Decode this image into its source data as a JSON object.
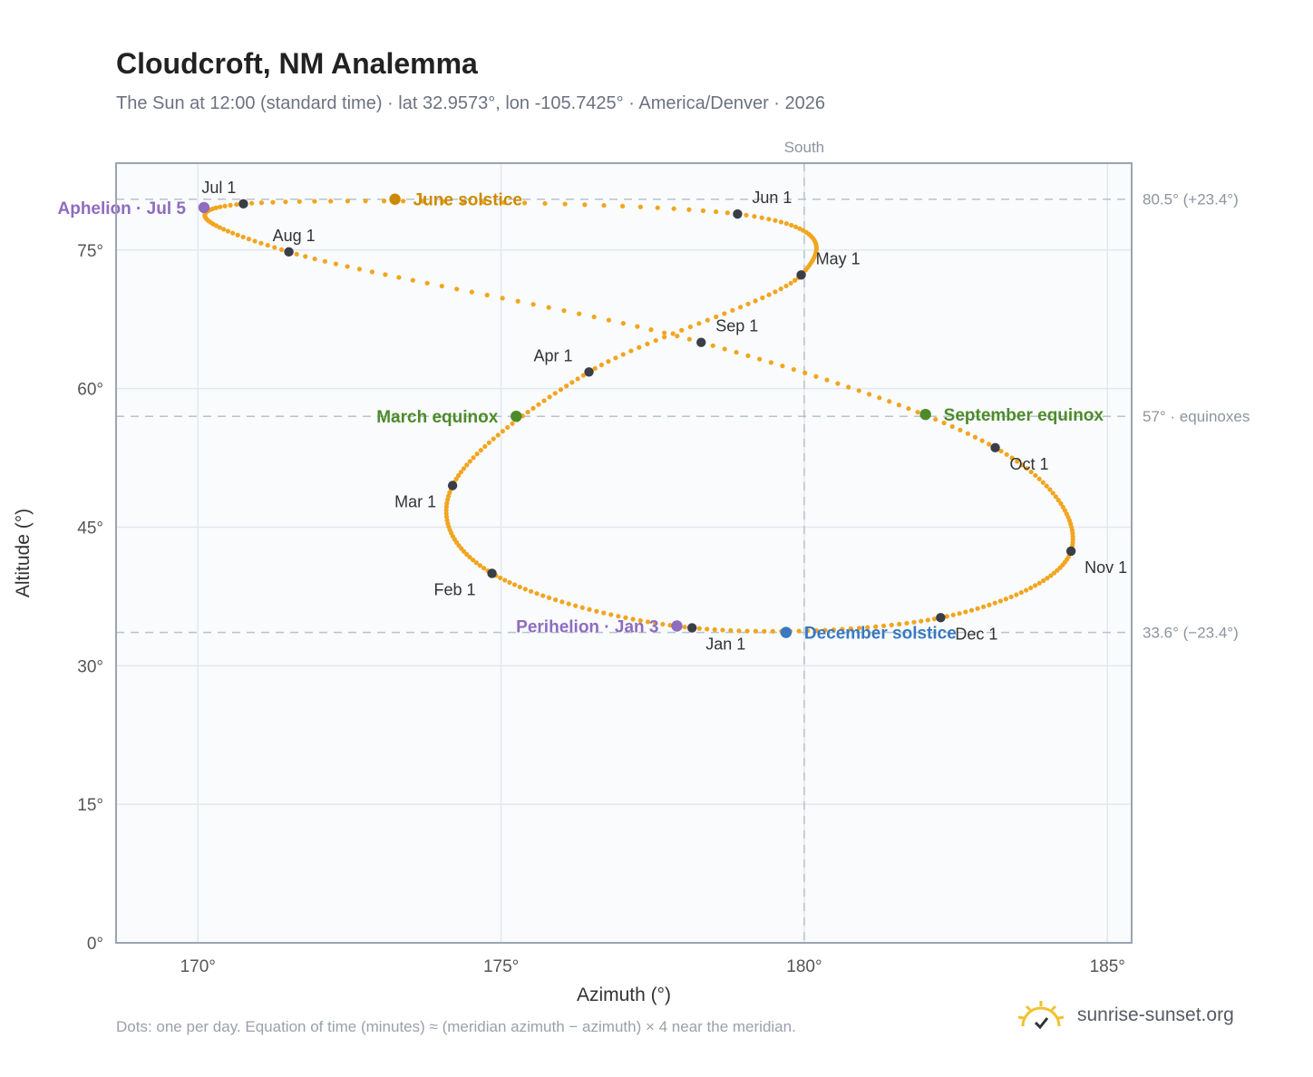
{
  "header": {
    "title": "Cloudcroft, NM Analemma",
    "subtitle": "The Sun at 12:00 (standard time) · lat 32.9573°, lon -105.7425° · America/Denver · 2026"
  },
  "footer": {
    "note": "Dots: one per day. Equation of time (minutes) ≈ (meridian azimuth − azimuth) × 4 near the meridian.",
    "brand": "sunrise-sunset.org"
  },
  "colors": {
    "curve": "#f2a51f",
    "month_marker": "#3a3f47",
    "june_solstice": "#cc8a00",
    "december_solstice": "#3a78c0",
    "equinox": "#4d8b2a",
    "apsis": "#8e6cbf",
    "plot_bg": "#f9fbfd",
    "grid": "#e3e8ee",
    "axis": "#9aa4b2",
    "reference_line": "#b8c3cd"
  },
  "chart_data": {
    "type": "scatter",
    "title": "Cloudcroft, NM Analemma",
    "xlabel": "Azimuth (°)",
    "ylabel": "Altitude (°)",
    "xlim": [
      168.65,
      185.4
    ],
    "ylim": [
      0,
      84.4
    ],
    "x_ticks": [
      170,
      175,
      180,
      185
    ],
    "x_tick_labels": [
      "170°",
      "175°",
      "180°",
      "185°"
    ],
    "y_ticks": [
      0,
      15,
      30,
      45,
      60,
      75
    ],
    "y_tick_labels": [
      "0°",
      "15°",
      "30°",
      "45°",
      "60°",
      "75°"
    ],
    "grid": true,
    "series": [
      {
        "points_per": "day",
        "month_markers": [
          {
            "label": "Jan 1",
            "azimuth": 178.15,
            "altitude": 34.1
          },
          {
            "label": "Feb 1",
            "azimuth": 174.85,
            "altitude": 40.0
          },
          {
            "label": "Mar 1",
            "azimuth": 174.2,
            "altitude": 49.5
          },
          {
            "label": "Apr 1",
            "azimuth": 176.45,
            "altitude": 61.8
          },
          {
            "label": "May 1",
            "azimuth": 179.95,
            "altitude": 72.3
          },
          {
            "label": "Jun 1",
            "azimuth": 178.9,
            "altitude": 78.9
          },
          {
            "label": "Jul 1",
            "azimuth": 170.75,
            "altitude": 80.0
          },
          {
            "label": "Aug 1",
            "azimuth": 171.5,
            "altitude": 74.8
          },
          {
            "label": "Sep 1",
            "azimuth": 178.3,
            "altitude": 65.0
          },
          {
            "label": "Oct 1",
            "azimuth": 183.15,
            "altitude": 53.6
          },
          {
            "label": "Nov 1",
            "azimuth": 184.4,
            "altitude": 42.4
          },
          {
            "label": "Dec 1",
            "azimuth": 182.25,
            "altitude": 35.2
          }
        ]
      }
    ],
    "events": [
      {
        "label": "June solstice",
        "azimuth": 173.25,
        "altitude": 80.5,
        "color_key": "june_solstice",
        "label_side": "right"
      },
      {
        "label": "December solstice",
        "azimuth": 179.7,
        "altitude": 33.6,
        "color_key": "december_solstice",
        "label_side": "right"
      },
      {
        "label": "March equinox",
        "azimuth": 175.25,
        "altitude": 57.0,
        "color_key": "equinox",
        "label_side": "left"
      },
      {
        "label": "September equinox",
        "azimuth": 182.0,
        "altitude": 57.2,
        "color_key": "equinox",
        "label_side": "right"
      },
      {
        "label": "Aphelion · Jul 5",
        "azimuth": 170.1,
        "altitude": 79.6,
        "color_key": "apsis",
        "label_side": "left"
      },
      {
        "label": "Perihelion · Jan 3",
        "azimuth": 177.9,
        "altitude": 34.3,
        "color_key": "apsis",
        "label_side": "left"
      }
    ],
    "reference_lines": [
      {
        "orientation": "horizontal",
        "value": 80.5,
        "label": "80.5° (+23.4°)"
      },
      {
        "orientation": "horizontal",
        "value": 57.0,
        "label": "57° · equinoxes"
      },
      {
        "orientation": "horizontal",
        "value": 33.6,
        "label": "33.6° (−23.4°)"
      },
      {
        "orientation": "vertical",
        "value": 180,
        "label": "South"
      }
    ]
  }
}
